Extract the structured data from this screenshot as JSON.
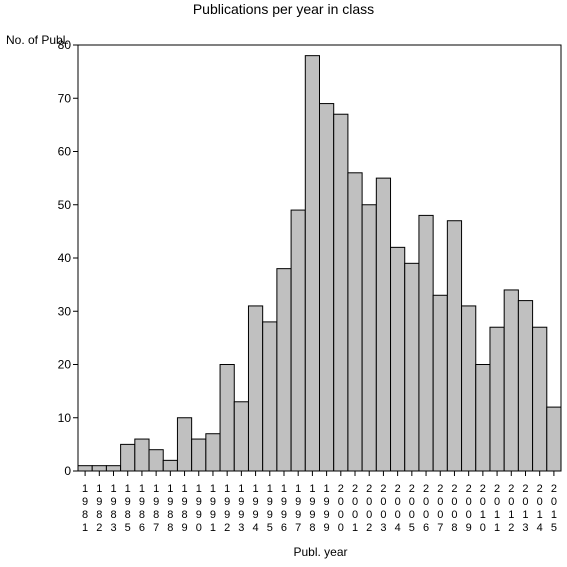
{
  "chart_data": {
    "type": "bar",
    "title": "Publications per year in class",
    "ylabel": "No. of Publ.",
    "xlabel": "Publ. year",
    "ylim": [
      0,
      80
    ],
    "yticks": [
      0,
      10,
      20,
      30,
      40,
      50,
      60,
      70,
      80
    ],
    "categories": [
      "1981",
      "1982",
      "1983",
      "1985",
      "1986",
      "1987",
      "1988",
      "1989",
      "1990",
      "1991",
      "1992",
      "1993",
      "1994",
      "1995",
      "1996",
      "1997",
      "1998",
      "1999",
      "2000",
      "2001",
      "2002",
      "2003",
      "2004",
      "2005",
      "2006",
      "2007",
      "2008",
      "2009",
      "2010",
      "2011",
      "2012",
      "2013",
      "2014",
      "2015"
    ],
    "values": [
      1,
      1,
      1,
      5,
      6,
      4,
      2,
      10,
      6,
      7,
      20,
      13,
      31,
      28,
      38,
      49,
      78,
      69,
      67,
      56,
      50,
      55,
      42,
      39,
      48,
      33,
      47,
      31,
      20,
      27,
      34,
      32,
      27,
      12
    ],
    "bar_color": "#c0c0c0",
    "grid": false
  }
}
